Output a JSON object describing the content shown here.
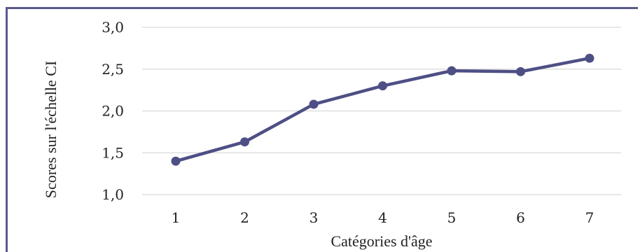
{
  "chart_data": {
    "type": "line",
    "title": "",
    "xlabel": "Catégories d'âge",
    "ylabel": "Scores sur l'échelle CI",
    "categories": [
      "1",
      "2",
      "3",
      "4",
      "5",
      "6",
      "7"
    ],
    "series": [
      {
        "values": [
          1.4,
          1.63,
          2.08,
          2.3,
          2.48,
          2.47,
          2.63
        ]
      }
    ],
    "ylim": [
      1.0,
      3.0
    ],
    "yticks": [
      "1,0",
      "1,5",
      "2,0",
      "2,5",
      "3,0"
    ],
    "ytick_values": [
      1.0,
      1.5,
      2.0,
      2.5,
      3.0
    ],
    "grid": true,
    "legend": "none",
    "colors": {
      "line": "#4e4f85",
      "grid": "#d9d9d9",
      "frame": "#5a5a8a"
    }
  }
}
